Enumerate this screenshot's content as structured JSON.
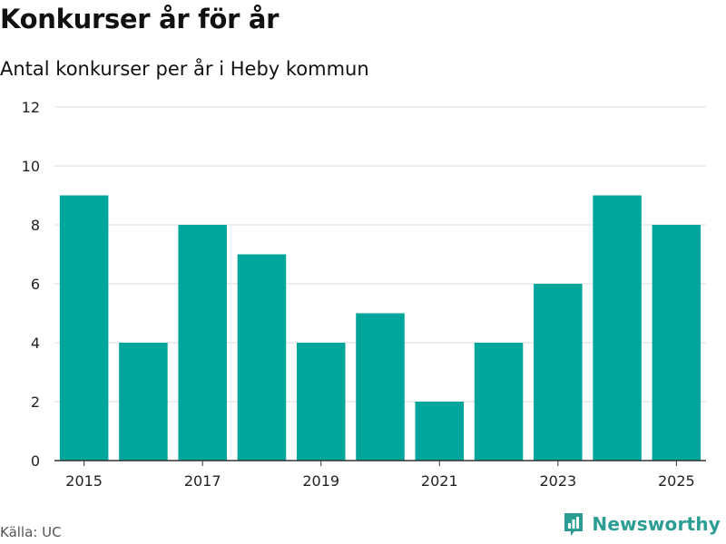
{
  "title": "Konkurser år för år",
  "subtitle": "Antal konkurser per år i Heby kommun",
  "source": "Källa: UC",
  "brand": {
    "name": "Newsworthy",
    "icon": "newsworthy-logo-icon"
  },
  "colors": {
    "bar": "#00a59b",
    "grid": "#dddddd",
    "axis": "#333333",
    "brand": "#2b9d93"
  },
  "chart_data": {
    "type": "bar",
    "title": "Konkurser år för år",
    "subtitle": "Antal konkurser per år i Heby kommun",
    "xlabel": "",
    "ylabel": "",
    "categories": [
      2015,
      2016,
      2017,
      2018,
      2019,
      2020,
      2021,
      2022,
      2023,
      2024,
      2025
    ],
    "values": [
      9,
      4,
      8,
      7,
      4,
      5,
      2,
      4,
      6,
      9,
      8
    ],
    "ylim": [
      0,
      12
    ],
    "yticks": [
      "0",
      "2",
      "4",
      "6",
      "8",
      "10",
      "12"
    ],
    "xtick_labels": [
      "2015",
      "2017",
      "2019",
      "2021",
      "2023",
      "2025"
    ],
    "grid": true
  }
}
